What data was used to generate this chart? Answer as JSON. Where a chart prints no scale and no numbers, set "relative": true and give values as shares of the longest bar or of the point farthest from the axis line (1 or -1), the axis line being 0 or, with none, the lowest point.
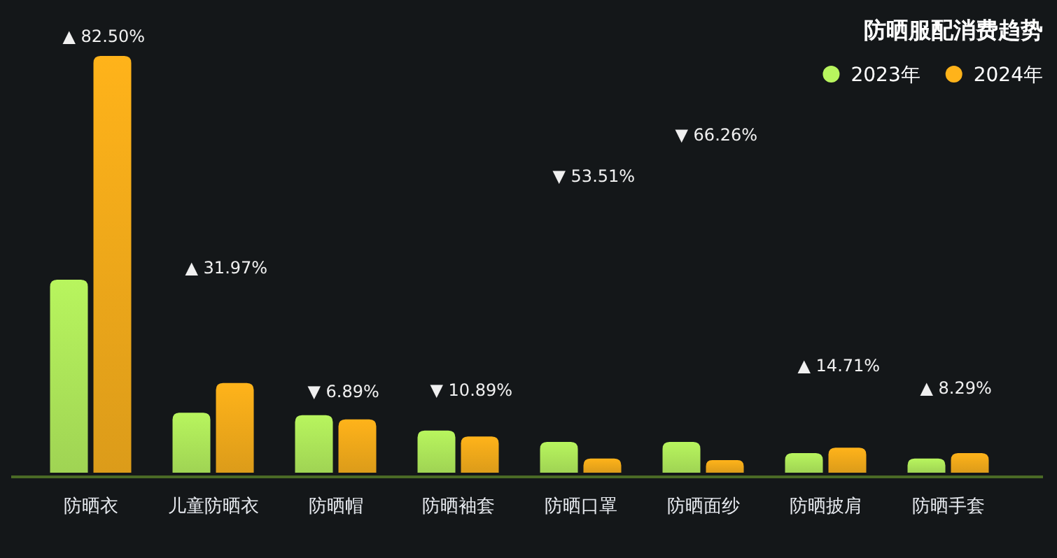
{
  "chart_data": {
    "type": "bar",
    "title": "防晒服配消费趋势",
    "relative": true,
    "legend": "top right",
    "categories": [
      "防晒衣",
      "儿童防晒衣",
      "防晒帽",
      "防晒袖套",
      "防晒口罩",
      "防晒面纱",
      "防晒披肩",
      "防晒手套"
    ],
    "series": [
      {
        "name": "2023年",
        "color": "#b8f55e",
        "values": [
          0.463,
          0.144,
          0.138,
          0.101,
          0.074,
          0.074,
          0.047,
          0.034
        ]
      },
      {
        "name": "2024年",
        "color": "#ffb31a",
        "values": [
          1.0,
          0.215,
          0.128,
          0.087,
          0.034,
          0.03,
          0.06,
          0.047
        ]
      }
    ],
    "annotations": [
      "▲ 82.50%",
      "▲ 31.97%",
      "▼ 6.89%",
      "▼ 10.89%",
      "▼ 53.51%",
      "▼ 66.26%",
      "▲ 14.71%",
      "▲ 8.29%"
    ]
  }
}
